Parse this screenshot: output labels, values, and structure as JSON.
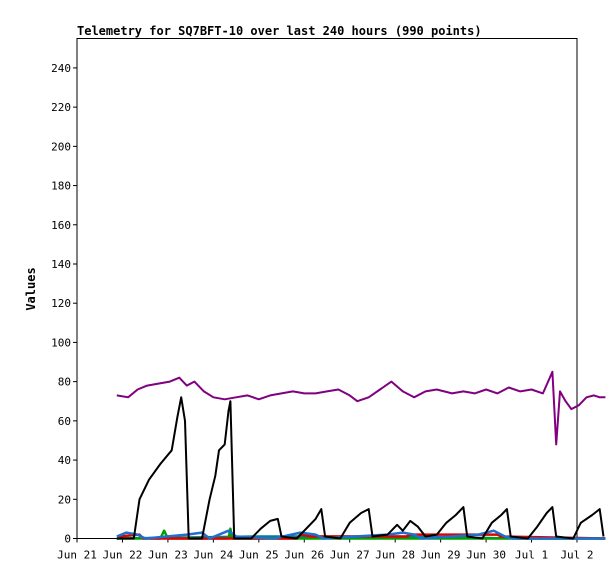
{
  "chart_data": {
    "type": "line",
    "title": "Telemetry for SQ7BFT-10 over last 240 hours (990 points)",
    "ylabel": "Values",
    "xlabel": "",
    "xlim": [
      "2025-06-21",
      "2025-07-02"
    ],
    "ylim": [
      0,
      255
    ],
    "yticks": [
      0,
      20,
      40,
      60,
      80,
      100,
      120,
      140,
      160,
      180,
      200,
      220,
      240
    ],
    "xticks": [
      {
        "date": "2025-06-21",
        "label": "Jun 21"
      },
      {
        "date": "2025-06-22",
        "label": "Jun 22"
      },
      {
        "date": "2025-06-23",
        "label": "Jun 23"
      },
      {
        "date": "2025-06-24",
        "label": "Jun 24"
      },
      {
        "date": "2025-06-25",
        "label": "Jun 25"
      },
      {
        "date": "2025-06-26",
        "label": "Jun 26"
      },
      {
        "date": "2025-06-27",
        "label": "Jun 27"
      },
      {
        "date": "2025-06-28",
        "label": "Jun 28"
      },
      {
        "date": "2025-06-29",
        "label": "Jun 29"
      },
      {
        "date": "2025-06-30",
        "label": "Jun 30"
      },
      {
        "date": "2025-07-01",
        "label": "Jul 1"
      },
      {
        "date": "2025-07-02",
        "label": "Jul 2"
      }
    ],
    "grid": false,
    "series": [
      {
        "color": "#800080",
        "points": [
          [
            "2025-06-21 21:00",
            73
          ],
          [
            "2025-06-22 03:00",
            72
          ],
          [
            "2025-06-22 08:00",
            76
          ],
          [
            "2025-06-22 13:00",
            78
          ],
          [
            "2025-06-22 19:00",
            79
          ],
          [
            "2025-06-23 01:00",
            80
          ],
          [
            "2025-06-23 06:00",
            82
          ],
          [
            "2025-06-23 10:00",
            78
          ],
          [
            "2025-06-23 14:00",
            80
          ],
          [
            "2025-06-23 19:00",
            75
          ],
          [
            "2025-06-24 00:00",
            72
          ],
          [
            "2025-06-24 06:00",
            71
          ],
          [
            "2025-06-24 12:00",
            72
          ],
          [
            "2025-06-24 18:00",
            73
          ],
          [
            "2025-06-25 00:00",
            71
          ],
          [
            "2025-06-25 06:00",
            73
          ],
          [
            "2025-06-25 12:00",
            74
          ],
          [
            "2025-06-25 18:00",
            75
          ],
          [
            "2025-06-26 00:00",
            74
          ],
          [
            "2025-06-26 06:00",
            74
          ],
          [
            "2025-06-26 12:00",
            75
          ],
          [
            "2025-06-26 18:00",
            76
          ],
          [
            "2025-06-27 00:00",
            73
          ],
          [
            "2025-06-27 04:00",
            70
          ],
          [
            "2025-06-27 10:00",
            72
          ],
          [
            "2025-06-27 16:00",
            76
          ],
          [
            "2025-06-27 22:00",
            80
          ],
          [
            "2025-06-28 04:00",
            75
          ],
          [
            "2025-06-28 10:00",
            72
          ],
          [
            "2025-06-28 16:00",
            75
          ],
          [
            "2025-06-28 22:00",
            76
          ],
          [
            "2025-06-29 06:00",
            74
          ],
          [
            "2025-06-29 12:00",
            75
          ],
          [
            "2025-06-29 18:00",
            74
          ],
          [
            "2025-06-30 00:00",
            76
          ],
          [
            "2025-06-30 06:00",
            74
          ],
          [
            "2025-06-30 12:00",
            77
          ],
          [
            "2025-06-30 18:00",
            75
          ],
          [
            "2025-07-01 00:00",
            76
          ],
          [
            "2025-07-01 06:00",
            74
          ],
          [
            "2025-07-01 11:00",
            85
          ],
          [
            "2025-07-01 13:00",
            48
          ],
          [
            "2025-07-01 15:00",
            75
          ],
          [
            "2025-07-01 18:00",
            70
          ],
          [
            "2025-07-01 21:00",
            66
          ],
          [
            "2025-07-02 01:00",
            68
          ],
          [
            "2025-07-02 05:00",
            72
          ],
          [
            "2025-07-02 09:00",
            73
          ],
          [
            "2025-07-02 12:00",
            72
          ],
          [
            "2025-07-02 15:00",
            72
          ]
        ]
      },
      {
        "color": "#000000",
        "points": [
          [
            "2025-06-21 21:00",
            0
          ],
          [
            "2025-06-22 06:00",
            0
          ],
          [
            "2025-06-22 09:00",
            20
          ],
          [
            "2025-06-22 14:00",
            30
          ],
          [
            "2025-06-22 20:00",
            38
          ],
          [
            "2025-06-23 02:00",
            45
          ],
          [
            "2025-06-23 05:00",
            62
          ],
          [
            "2025-06-23 07:00",
            72
          ],
          [
            "2025-06-23 09:00",
            60
          ],
          [
            "2025-06-23 11:00",
            0
          ],
          [
            "2025-06-23 18:00",
            0
          ],
          [
            "2025-06-23 22:00",
            20
          ],
          [
            "2025-06-24 01:00",
            32
          ],
          [
            "2025-06-24 03:00",
            45
          ],
          [
            "2025-06-24 06:00",
            48
          ],
          [
            "2025-06-24 08:00",
            65
          ],
          [
            "2025-06-24 09:00",
            70
          ],
          [
            "2025-06-24 11:00",
            0
          ],
          [
            "2025-06-24 20:00",
            0
          ],
          [
            "2025-06-25 01:00",
            5
          ],
          [
            "2025-06-25 06:00",
            9
          ],
          [
            "2025-06-25 10:00",
            10
          ],
          [
            "2025-06-25 12:00",
            1
          ],
          [
            "2025-06-25 20:00",
            0
          ],
          [
            "2025-06-26 01:00",
            5
          ],
          [
            "2025-06-26 06:00",
            10
          ],
          [
            "2025-06-26 09:00",
            15
          ],
          [
            "2025-06-26 11:00",
            1
          ],
          [
            "2025-06-26 19:00",
            0
          ],
          [
            "2025-06-27 00:00",
            8
          ],
          [
            "2025-06-27 06:00",
            13
          ],
          [
            "2025-06-27 10:00",
            15
          ],
          [
            "2025-06-27 12:00",
            1
          ],
          [
            "2025-06-27 20:00",
            2
          ],
          [
            "2025-06-28 01:00",
            7
          ],
          [
            "2025-06-28 04:00",
            4
          ],
          [
            "2025-06-28 08:00",
            9
          ],
          [
            "2025-06-28 12:00",
            6
          ],
          [
            "2025-06-28 16:00",
            1
          ],
          [
            "2025-06-28 22:00",
            2
          ],
          [
            "2025-06-29 03:00",
            8
          ],
          [
            "2025-06-29 08:00",
            12
          ],
          [
            "2025-06-29 12:00",
            16
          ],
          [
            "2025-06-29 14:00",
            1
          ],
          [
            "2025-06-29 22:00",
            0
          ],
          [
            "2025-06-30 03:00",
            8
          ],
          [
            "2025-06-30 08:00",
            12
          ],
          [
            "2025-06-30 11:00",
            15
          ],
          [
            "2025-06-30 13:00",
            1
          ],
          [
            "2025-06-30 22:00",
            0
          ],
          [
            "2025-07-01 03:00",
            6
          ],
          [
            "2025-07-01 08:00",
            13
          ],
          [
            "2025-07-01 11:00",
            16
          ],
          [
            "2025-07-01 13:00",
            1
          ],
          [
            "2025-07-01 22:00",
            0
          ],
          [
            "2025-07-02 02:00",
            8
          ],
          [
            "2025-07-02 08:00",
            12
          ],
          [
            "2025-07-02 12:00",
            15
          ],
          [
            "2025-07-02 14:00",
            1
          ]
        ]
      },
      {
        "color": "#1e6fd0",
        "points": [
          [
            "2025-06-21 21:00",
            1
          ],
          [
            "2025-06-22 02:00",
            3
          ],
          [
            "2025-06-22 08:00",
            2
          ],
          [
            "2025-06-22 12:00",
            0
          ],
          [
            "2025-06-23 10:00",
            2
          ],
          [
            "2025-06-23 18:00",
            3
          ],
          [
            "2025-06-23 22:00",
            0
          ],
          [
            "2025-06-24 08:00",
            4
          ],
          [
            "2025-06-24 12:00",
            1
          ],
          [
            "2025-06-25 08:00",
            0
          ],
          [
            "2025-06-25 22:00",
            3
          ],
          [
            "2025-06-26 06:00",
            2
          ],
          [
            "2025-06-26 10:00",
            0
          ],
          [
            "2025-06-27 20:00",
            2
          ],
          [
            "2025-06-28 04:00",
            3
          ],
          [
            "2025-06-28 10:00",
            2
          ],
          [
            "2025-06-28 14:00",
            0
          ],
          [
            "2025-06-29 20:00",
            2
          ],
          [
            "2025-06-30 04:00",
            4
          ],
          [
            "2025-06-30 10:00",
            1
          ],
          [
            "2025-06-30 14:00",
            0
          ],
          [
            "2025-07-02 15:00",
            0
          ]
        ]
      },
      {
        "color": "#e00000",
        "points": [
          [
            "2025-06-21 22:00",
            1
          ],
          [
            "2025-06-22 09:00",
            2
          ],
          [
            "2025-06-22 11:00",
            0
          ],
          [
            "2025-06-25 20:00",
            0
          ],
          [
            "2025-06-25 22:00",
            2
          ],
          [
            "2025-06-26 04:00",
            1
          ],
          [
            "2025-06-28 06:00",
            1
          ],
          [
            "2025-06-28 08:00",
            2
          ],
          [
            "2025-06-30 06:00",
            2
          ],
          [
            "2025-06-30 08:00",
            1
          ],
          [
            "2025-07-02 15:00",
            0
          ]
        ]
      },
      {
        "color": "#00a000",
        "points": [
          [
            "2025-06-21 21:00",
            0
          ],
          [
            "2025-06-22 20:00",
            0
          ],
          [
            "2025-06-22 22:00",
            4
          ],
          [
            "2025-06-23 00:00",
            0
          ],
          [
            "2025-06-24 08:00",
            0
          ],
          [
            "2025-06-24 09:00",
            5
          ],
          [
            "2025-06-24 10:00",
            0
          ],
          [
            "2025-07-02 15:00",
            0
          ]
        ]
      },
      {
        "color": "#008080",
        "points": [
          [
            "2025-06-21 21:00",
            0
          ],
          [
            "2025-06-25 00:00",
            1
          ],
          [
            "2025-06-28 00:00",
            1
          ],
          [
            "2025-06-30 18:00",
            0
          ],
          [
            "2025-07-02 15:00",
            0
          ]
        ]
      }
    ]
  }
}
